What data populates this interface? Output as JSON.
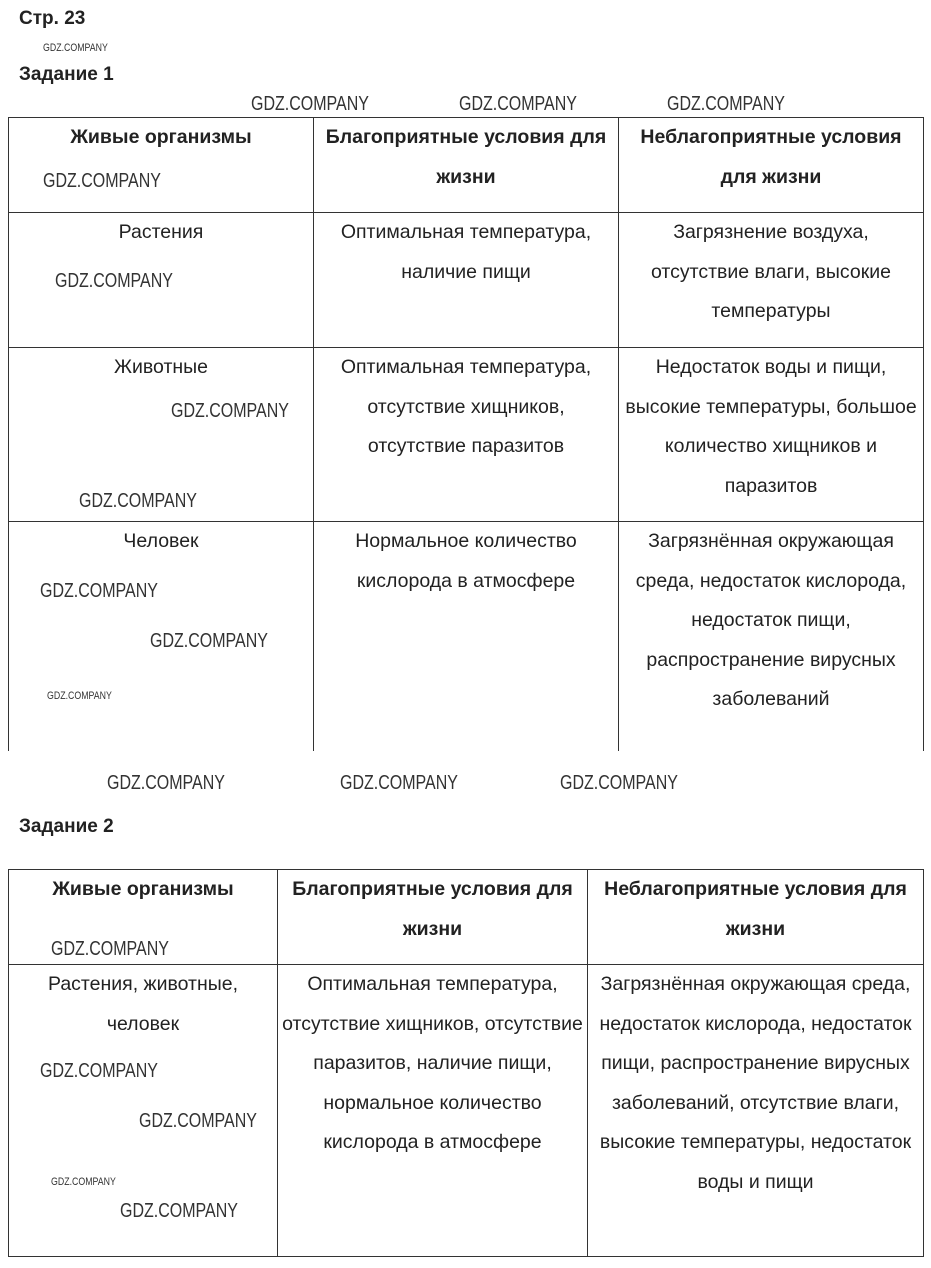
{
  "page_label": "Стр. 23",
  "task1": {
    "title": "Задание 1",
    "headers": [
      "Живые организмы",
      "Благоприятные условия для жизни",
      "Неблагоприятные условия для жизни"
    ],
    "rows": [
      [
        "Растения",
        "Оптимальная температура, наличие пищи",
        "Загрязнение воздуха, отсутствие влаги, высокие температуры"
      ],
      [
        "Животные",
        "Оптимальная температура, отсутствие хищников, отсутствие паразитов",
        "Недостаток воды и пищи, высокие температуры, большое количество хищников и паразитов"
      ],
      [
        "Человек",
        "Нормальное количество кислорода в атмосфере",
        "Загрязнённая окружающая среда, недостаток кислорода, недостаток пищи, распространение вирусных заболеваний"
      ]
    ]
  },
  "task2": {
    "title": "Задание 2",
    "headers": [
      "Живые организмы",
      "Благоприятные условия для жизни",
      "Неблагоприятные условия для жизни"
    ],
    "rows": [
      [
        "Растения, животные, человек",
        "Оптимальная температура, отсутствие хищников, отсутствие паразитов, наличие пищи, нормальное количество кислорода в атмосфере",
        "Загрязнённая окружающая среда, недостаток кислорода, недостаток пищи, распространение вирусных заболеваний, отсутствие влаги, высокие температуры, недостаток воды и пищи"
      ]
    ]
  },
  "watermark": "GDZ.COMPANY"
}
